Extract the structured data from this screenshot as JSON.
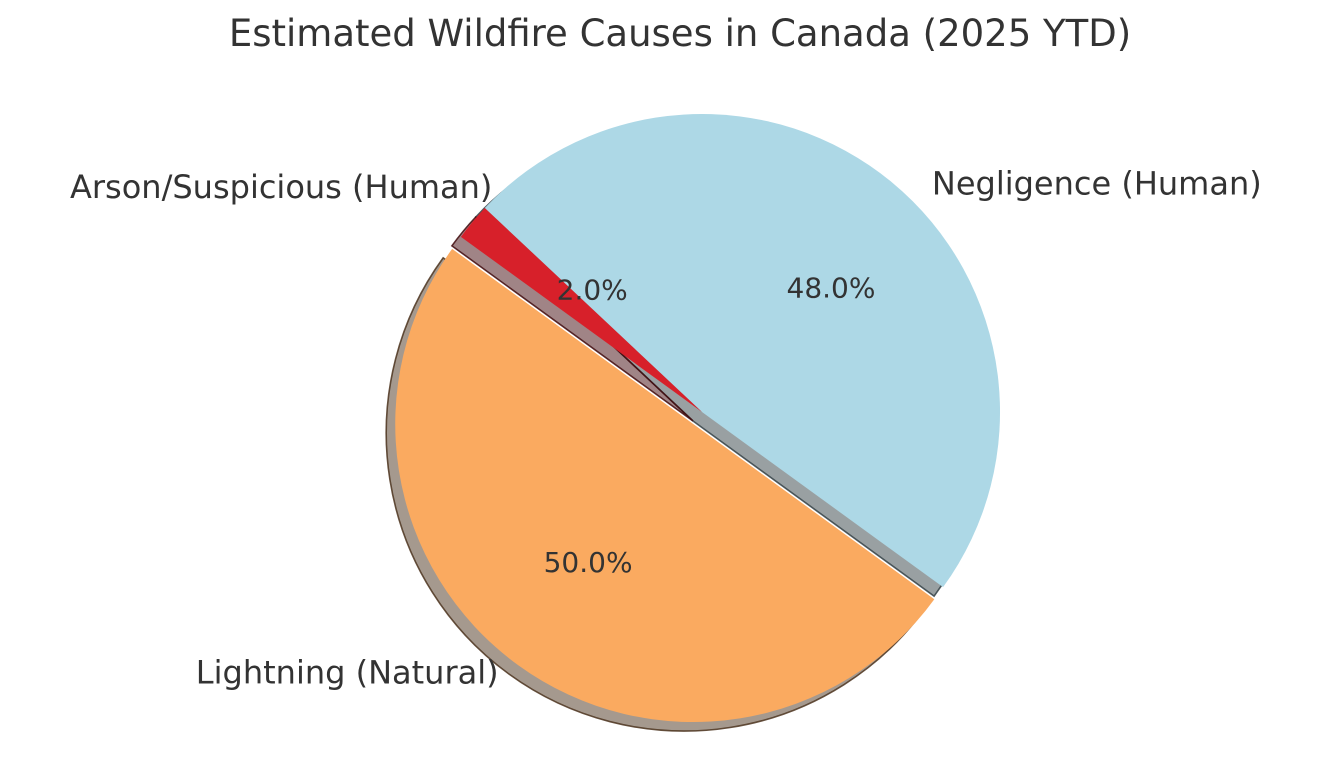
{
  "chart_data": {
    "type": "pie",
    "title": "Estimated Wildfire Causes in Canada (2025 YTD)",
    "slices": [
      {
        "label": "Negligence (Human)",
        "value": 48.0,
        "pct_label": "48.0%",
        "color": "#ADD8E6",
        "explode": 0
      },
      {
        "label": "Arson/Suspicious (Human)",
        "value": 2.0,
        "pct_label": "2.0%",
        "color": "#D7202A",
        "explode": 0
      },
      {
        "label": "Lightning (Natural)",
        "value": 50.0,
        "pct_label": "50.0%",
        "color": "#FAAA60",
        "explode": 0.05
      }
    ],
    "start_angle": -36,
    "direction": "counterclockwise",
    "shadow": true,
    "legend": "none",
    "text_color": "#333333",
    "background_color": "#ffffff"
  }
}
